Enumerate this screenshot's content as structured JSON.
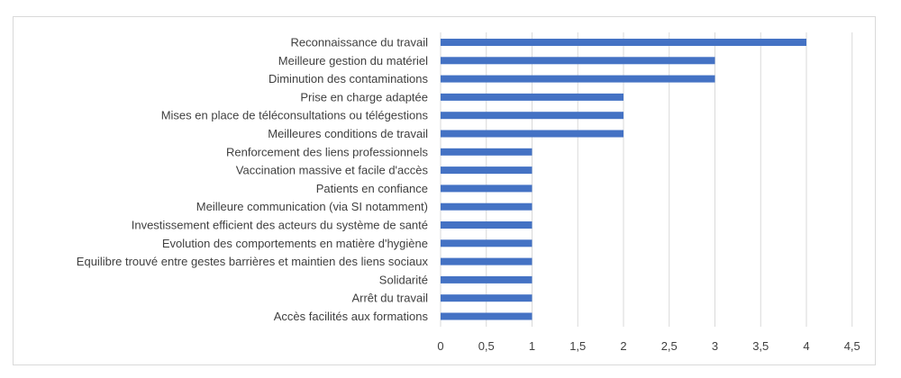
{
  "chart_data": {
    "type": "bar",
    "orientation": "horizontal",
    "title": "",
    "xlabel": "",
    "ylabel": "",
    "categories": [
      "Reconnaissance du travail",
      "Meilleure gestion du matériel",
      "Diminution des contaminations",
      "Prise en charge adaptée",
      "Mises en place de téléconsultations ou télégestions",
      "Meilleures conditions de travail",
      "Renforcement des liens professionnels",
      "Vaccination massive et facile d'accès",
      "Patients en confiance",
      "Meilleure communication (via SI notamment)",
      "Investissement efficient des acteurs du système de santé",
      "Evolution des comportements en matière d'hygiène",
      "Equilibre trouvé entre gestes barrières et maintien des liens sociaux",
      "Solidarité",
      "Arrêt du travail",
      "Accès facilités aux formations"
    ],
    "values": [
      4,
      3,
      3,
      2,
      2,
      2,
      1,
      1,
      1,
      1,
      1,
      1,
      1,
      1,
      1,
      1
    ],
    "xlim": [
      0,
      4.5
    ],
    "ticks": [
      "0",
      "0,5",
      "1",
      "1,5",
      "2",
      "2,5",
      "3",
      "3,5",
      "4",
      "4,5"
    ],
    "grid": "vertical",
    "legend": "none",
    "colors": {
      "bar": "#4472C4",
      "grid": "#d9d9d9",
      "text": "#404040"
    }
  }
}
